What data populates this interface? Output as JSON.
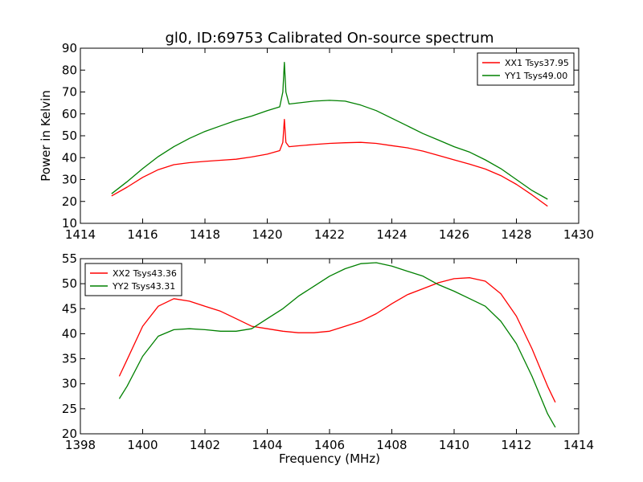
{
  "figure_title": "gl0, ID:69753 Calibrated On-source spectrum",
  "chart_data": [
    {
      "type": "line",
      "title": "gl0, ID:69753 Calibrated On-source spectrum",
      "xlabel": "",
      "ylabel": "Power in Kelvin",
      "xlim": [
        1414,
        1430
      ],
      "ylim": [
        10,
        90
      ],
      "xticks": [
        1414,
        1416,
        1418,
        1420,
        1422,
        1424,
        1426,
        1428,
        1430
      ],
      "yticks": [
        10,
        20,
        30,
        40,
        50,
        60,
        70,
        80,
        90
      ],
      "grid": false,
      "legend": "top-right",
      "series": [
        {
          "name": "XX1 Tsys37.95",
          "color": "#ff0000",
          "points": [
            [
              1415.0,
              22.5
            ],
            [
              1415.5,
              26.5
            ],
            [
              1416.0,
              31.0
            ],
            [
              1416.5,
              34.5
            ],
            [
              1417.0,
              36.8
            ],
            [
              1417.5,
              37.7
            ],
            [
              1418.0,
              38.3
            ],
            [
              1418.5,
              38.8
            ],
            [
              1419.0,
              39.3
            ],
            [
              1419.5,
              40.3
            ],
            [
              1420.0,
              41.6
            ],
            [
              1420.4,
              43.2
            ],
            [
              1420.5,
              47.0
            ],
            [
              1420.55,
              57.5
            ],
            [
              1420.6,
              47.0
            ],
            [
              1420.7,
              45.0
            ],
            [
              1421.0,
              45.4
            ],
            [
              1421.5,
              46.0
            ],
            [
              1422.0,
              46.5
            ],
            [
              1422.5,
              46.8
            ],
            [
              1423.0,
              47.0
            ],
            [
              1423.5,
              46.5
            ],
            [
              1424.0,
              45.5
            ],
            [
              1424.5,
              44.5
            ],
            [
              1425.0,
              43.0
            ],
            [
              1425.5,
              41.0
            ],
            [
              1426.0,
              39.0
            ],
            [
              1426.5,
              37.0
            ],
            [
              1427.0,
              34.8
            ],
            [
              1427.5,
              31.8
            ],
            [
              1428.0,
              27.8
            ],
            [
              1428.5,
              23.0
            ],
            [
              1429.0,
              17.8
            ]
          ]
        },
        {
          "name": "YY1 Tsys49.00",
          "color": "#008000",
          "points": [
            [
              1415.0,
              23.5
            ],
            [
              1415.5,
              29.0
            ],
            [
              1416.0,
              35.0
            ],
            [
              1416.5,
              40.5
            ],
            [
              1417.0,
              45.0
            ],
            [
              1417.5,
              48.8
            ],
            [
              1418.0,
              52.0
            ],
            [
              1418.5,
              54.5
            ],
            [
              1419.0,
              57.0
            ],
            [
              1419.5,
              59.0
            ],
            [
              1420.0,
              61.5
            ],
            [
              1420.4,
              63.2
            ],
            [
              1420.5,
              70.0
            ],
            [
              1420.55,
              83.5
            ],
            [
              1420.6,
              70.0
            ],
            [
              1420.7,
              64.5
            ],
            [
              1421.0,
              65.0
            ],
            [
              1421.5,
              65.8
            ],
            [
              1422.0,
              66.2
            ],
            [
              1422.5,
              65.8
            ],
            [
              1423.0,
              64.0
            ],
            [
              1423.5,
              61.5
            ],
            [
              1424.0,
              58.0
            ],
            [
              1424.5,
              54.5
            ],
            [
              1425.0,
              51.0
            ],
            [
              1425.5,
              48.0
            ],
            [
              1426.0,
              45.0
            ],
            [
              1426.5,
              42.5
            ],
            [
              1427.0,
              39.0
            ],
            [
              1427.5,
              35.0
            ],
            [
              1428.0,
              30.0
            ],
            [
              1428.5,
              25.0
            ],
            [
              1429.0,
              21.0
            ]
          ]
        }
      ]
    },
    {
      "type": "line",
      "title": "",
      "xlabel": "Frequency (MHz)",
      "ylabel": "",
      "xlim": [
        1398,
        1414
      ],
      "ylim": [
        20,
        55
      ],
      "xticks": [
        1398,
        1400,
        1402,
        1404,
        1406,
        1408,
        1410,
        1412,
        1414
      ],
      "yticks": [
        20,
        25,
        30,
        35,
        40,
        45,
        50,
        55
      ],
      "grid": false,
      "legend": "top-left",
      "series": [
        {
          "name": "XX2 Tsys43.36",
          "color": "#ff0000",
          "points": [
            [
              1399.25,
              31.5
            ],
            [
              1399.5,
              34.8
            ],
            [
              1400.0,
              41.5
            ],
            [
              1400.5,
              45.5
            ],
            [
              1401.0,
              47.0
            ],
            [
              1401.5,
              46.5
            ],
            [
              1402.0,
              45.5
            ],
            [
              1402.5,
              44.5
            ],
            [
              1403.0,
              43.0
            ],
            [
              1403.5,
              41.5
            ],
            [
              1404.0,
              41.0
            ],
            [
              1404.5,
              40.5
            ],
            [
              1405.0,
              40.2
            ],
            [
              1405.5,
              40.2
            ],
            [
              1406.0,
              40.5
            ],
            [
              1406.5,
              41.5
            ],
            [
              1407.0,
              42.5
            ],
            [
              1407.5,
              44.0
            ],
            [
              1408.0,
              46.0
            ],
            [
              1408.5,
              47.8
            ],
            [
              1409.0,
              49.0
            ],
            [
              1409.5,
              50.2
            ],
            [
              1410.0,
              51.0
            ],
            [
              1410.5,
              51.2
            ],
            [
              1411.0,
              50.5
            ],
            [
              1411.5,
              48.0
            ],
            [
              1412.0,
              43.5
            ],
            [
              1412.5,
              37.0
            ],
            [
              1413.0,
              29.5
            ],
            [
              1413.25,
              26.3
            ]
          ]
        },
        {
          "name": "YY2 Tsys43.31",
          "color": "#008000",
          "points": [
            [
              1399.25,
              27.0
            ],
            [
              1399.5,
              29.5
            ],
            [
              1400.0,
              35.5
            ],
            [
              1400.5,
              39.5
            ],
            [
              1401.0,
              40.8
            ],
            [
              1401.5,
              41.0
            ],
            [
              1402.0,
              40.8
            ],
            [
              1402.5,
              40.5
            ],
            [
              1403.0,
              40.5
            ],
            [
              1403.5,
              41.0
            ],
            [
              1404.0,
              43.0
            ],
            [
              1404.5,
              45.0
            ],
            [
              1405.0,
              47.5
            ],
            [
              1405.5,
              49.5
            ],
            [
              1406.0,
              51.5
            ],
            [
              1406.5,
              53.0
            ],
            [
              1407.0,
              54.0
            ],
            [
              1407.5,
              54.2
            ],
            [
              1408.0,
              53.5
            ],
            [
              1408.5,
              52.5
            ],
            [
              1409.0,
              51.5
            ],
            [
              1409.5,
              49.8
            ],
            [
              1410.0,
              48.5
            ],
            [
              1410.5,
              47.0
            ],
            [
              1411.0,
              45.5
            ],
            [
              1411.5,
              42.5
            ],
            [
              1412.0,
              38.0
            ],
            [
              1412.5,
              31.5
            ],
            [
              1413.0,
              24.0
            ],
            [
              1413.25,
              21.3
            ]
          ]
        }
      ]
    }
  ]
}
